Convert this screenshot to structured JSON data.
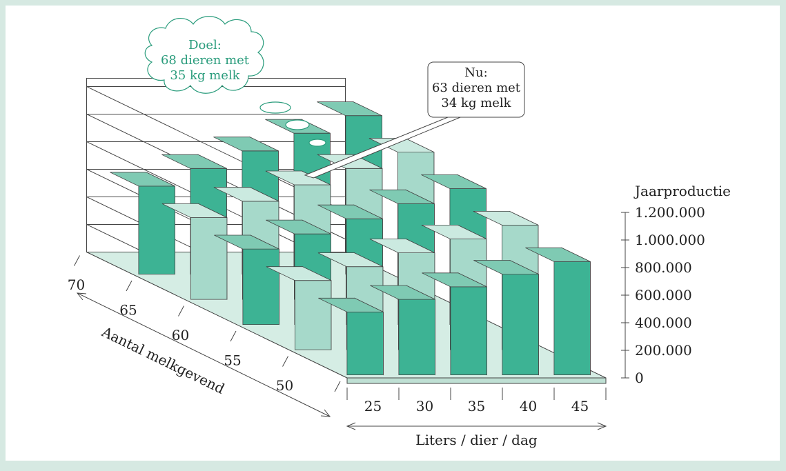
{
  "chart_data": {
    "type": "bar",
    "variant": "3d-grid",
    "z_axis_label": "Jaarproductie",
    "z_ticks": [
      "0",
      "200.000",
      "400.000",
      "600.000",
      "800.000",
      "1.000.000",
      "1.200.000"
    ],
    "zlim": [
      0,
      1200000
    ],
    "x_axis_label": "Liters / dier / dag",
    "x_categories": [
      "25",
      "30",
      "35",
      "40",
      "45"
    ],
    "y_axis_label": "Aantal melkgevend",
    "y_categories": [
      "50",
      "55",
      "60",
      "65",
      "70"
    ],
    "values": [
      [
        456250,
        547500,
        638750,
        730000,
        821250
      ],
      [
        501875,
        602250,
        702625,
        803000,
        903375
      ],
      [
        547500,
        657000,
        766500,
        876000,
        985500
      ],
      [
        593125,
        711750,
        830375,
        949000,
        1067625
      ],
      [
        638750,
        766500,
        894250,
        1022000,
        1149750
      ]
    ],
    "shading": [
      [
        "dark",
        "dark",
        "dark",
        "dark",
        "dark"
      ],
      [
        "light",
        "light",
        "light",
        "light",
        "light"
      ],
      [
        "dark",
        "dark",
        "dark",
        "dark",
        "dark"
      ],
      [
        "light",
        "light",
        "light",
        "light",
        "light"
      ],
      [
        "dark",
        "dark",
        "dark",
        "dark",
        "dark"
      ]
    ],
    "colors": {
      "dark_front": "#3db394",
      "dark_side": "#0d9b78",
      "dark_top": "#7fcab3",
      "light_front": "#a6d9ca",
      "light_side": "#82c4b3",
      "light_top": "#cbeae0",
      "floor": "#d5ede4",
      "callout_green": "#2a9c7c"
    },
    "callouts": {
      "goal": [
        "Doel:",
        "68 dieren met",
        "35 kg melk"
      ],
      "current": [
        "Nu:",
        "63 dieren met",
        "34 kg melk"
      ]
    },
    "grid": true
  }
}
